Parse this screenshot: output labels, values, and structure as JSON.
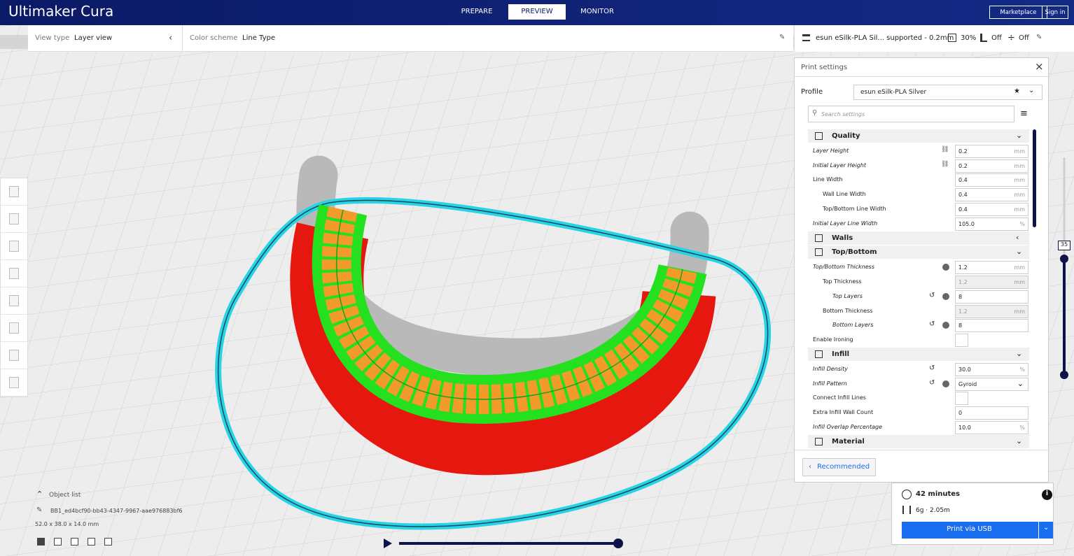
{
  "header": {
    "brand": "Ultimaker Cura",
    "tabs": [
      "PREPARE",
      "PREVIEW",
      "MONITOR"
    ],
    "active_tab": 1,
    "buttons": [
      "Marketplace",
      "Sign in"
    ]
  },
  "view_bar": {
    "view_type_label": "View type",
    "view_type": "Layer view",
    "color_scheme_label": "Color scheme",
    "color_scheme": "Line Type"
  },
  "print_summary": {
    "profile": "esun eSilk-PLA Sil... supported - 0.2mm",
    "infill": "30%",
    "support": "Off",
    "adhesion": "Off"
  },
  "settings_panel": {
    "title": "Print settings",
    "profile_label": "Profile",
    "profile": "esun eSilk-PLA Silver",
    "search_placeholder": "Search settings",
    "rows": [
      {
        "section": "Quality",
        "expanded": true
      },
      {
        "label": "Layer Height",
        "value": "0.2",
        "unit": "mm",
        "level": 0,
        "italic": true,
        "linked": true
      },
      {
        "label": "Initial Layer Height",
        "value": "0.2",
        "unit": "mm",
        "level": 0,
        "italic": true,
        "linked": true
      },
      {
        "label": "Line Width",
        "value": "0.4",
        "unit": "mm",
        "level": 0
      },
      {
        "label": "Wall Line Width",
        "value": "0.4",
        "unit": "mm",
        "level": 1
      },
      {
        "label": "Top/Bottom Line Width",
        "value": "0.4",
        "unit": "mm",
        "level": 1
      },
      {
        "label": "Initial Layer Line Width",
        "value": "105.0",
        "unit": "%",
        "level": 0,
        "italic": true
      },
      {
        "section": "Walls",
        "expanded": false
      },
      {
        "section": "Top/Bottom",
        "expanded": true
      },
      {
        "label": "Top/Bottom Thickness",
        "value": "1.2",
        "unit": "mm",
        "level": 0,
        "italic": true,
        "info": true
      },
      {
        "label": "Top Thickness",
        "value": "1.2",
        "unit": "mm",
        "level": 1,
        "disabled": true
      },
      {
        "label": "Top Layers",
        "value": "8",
        "level": 2,
        "italic": true,
        "reset": true,
        "info": true
      },
      {
        "label": "Bottom Thickness",
        "value": "1.2",
        "unit": "mm",
        "level": 1,
        "disabled": true
      },
      {
        "label": "Bottom Layers",
        "value": "8",
        "level": 2,
        "italic": true,
        "reset": true,
        "info": true
      },
      {
        "label": "Enable Ironing",
        "checkbox": false,
        "level": 0
      },
      {
        "section": "Infill",
        "expanded": true
      },
      {
        "label": "Infill Density",
        "value": "30.0",
        "unit": "%",
        "level": 0,
        "italic": true,
        "reset": true
      },
      {
        "label": "Infill Pattern",
        "value": "Gyroid",
        "level": 0,
        "italic": true,
        "reset": true,
        "info": true,
        "dropdown": true
      },
      {
        "label": "Connect Infill Lines",
        "checkbox": false,
        "level": 0
      },
      {
        "label": "Extra Infill Wall Count",
        "value": "0",
        "level": 0
      },
      {
        "label": "Infill Overlap Percentage",
        "value": "10.0",
        "unit": "%",
        "level": 0,
        "italic": true
      },
      {
        "section": "Material",
        "expanded": true
      }
    ],
    "recommended_button": "Recommended"
  },
  "layer_slider": {
    "current": "35"
  },
  "object_list": {
    "title": "Object list",
    "object_name": "BB1_ed4bcf90-bb43-4347-9967-aae976883bf6",
    "dimensions": "52.0 x 38.0 x 14.0 mm"
  },
  "print_info": {
    "time": "42 minutes",
    "material": "6g · 2.05m",
    "button": "Print via USB"
  }
}
